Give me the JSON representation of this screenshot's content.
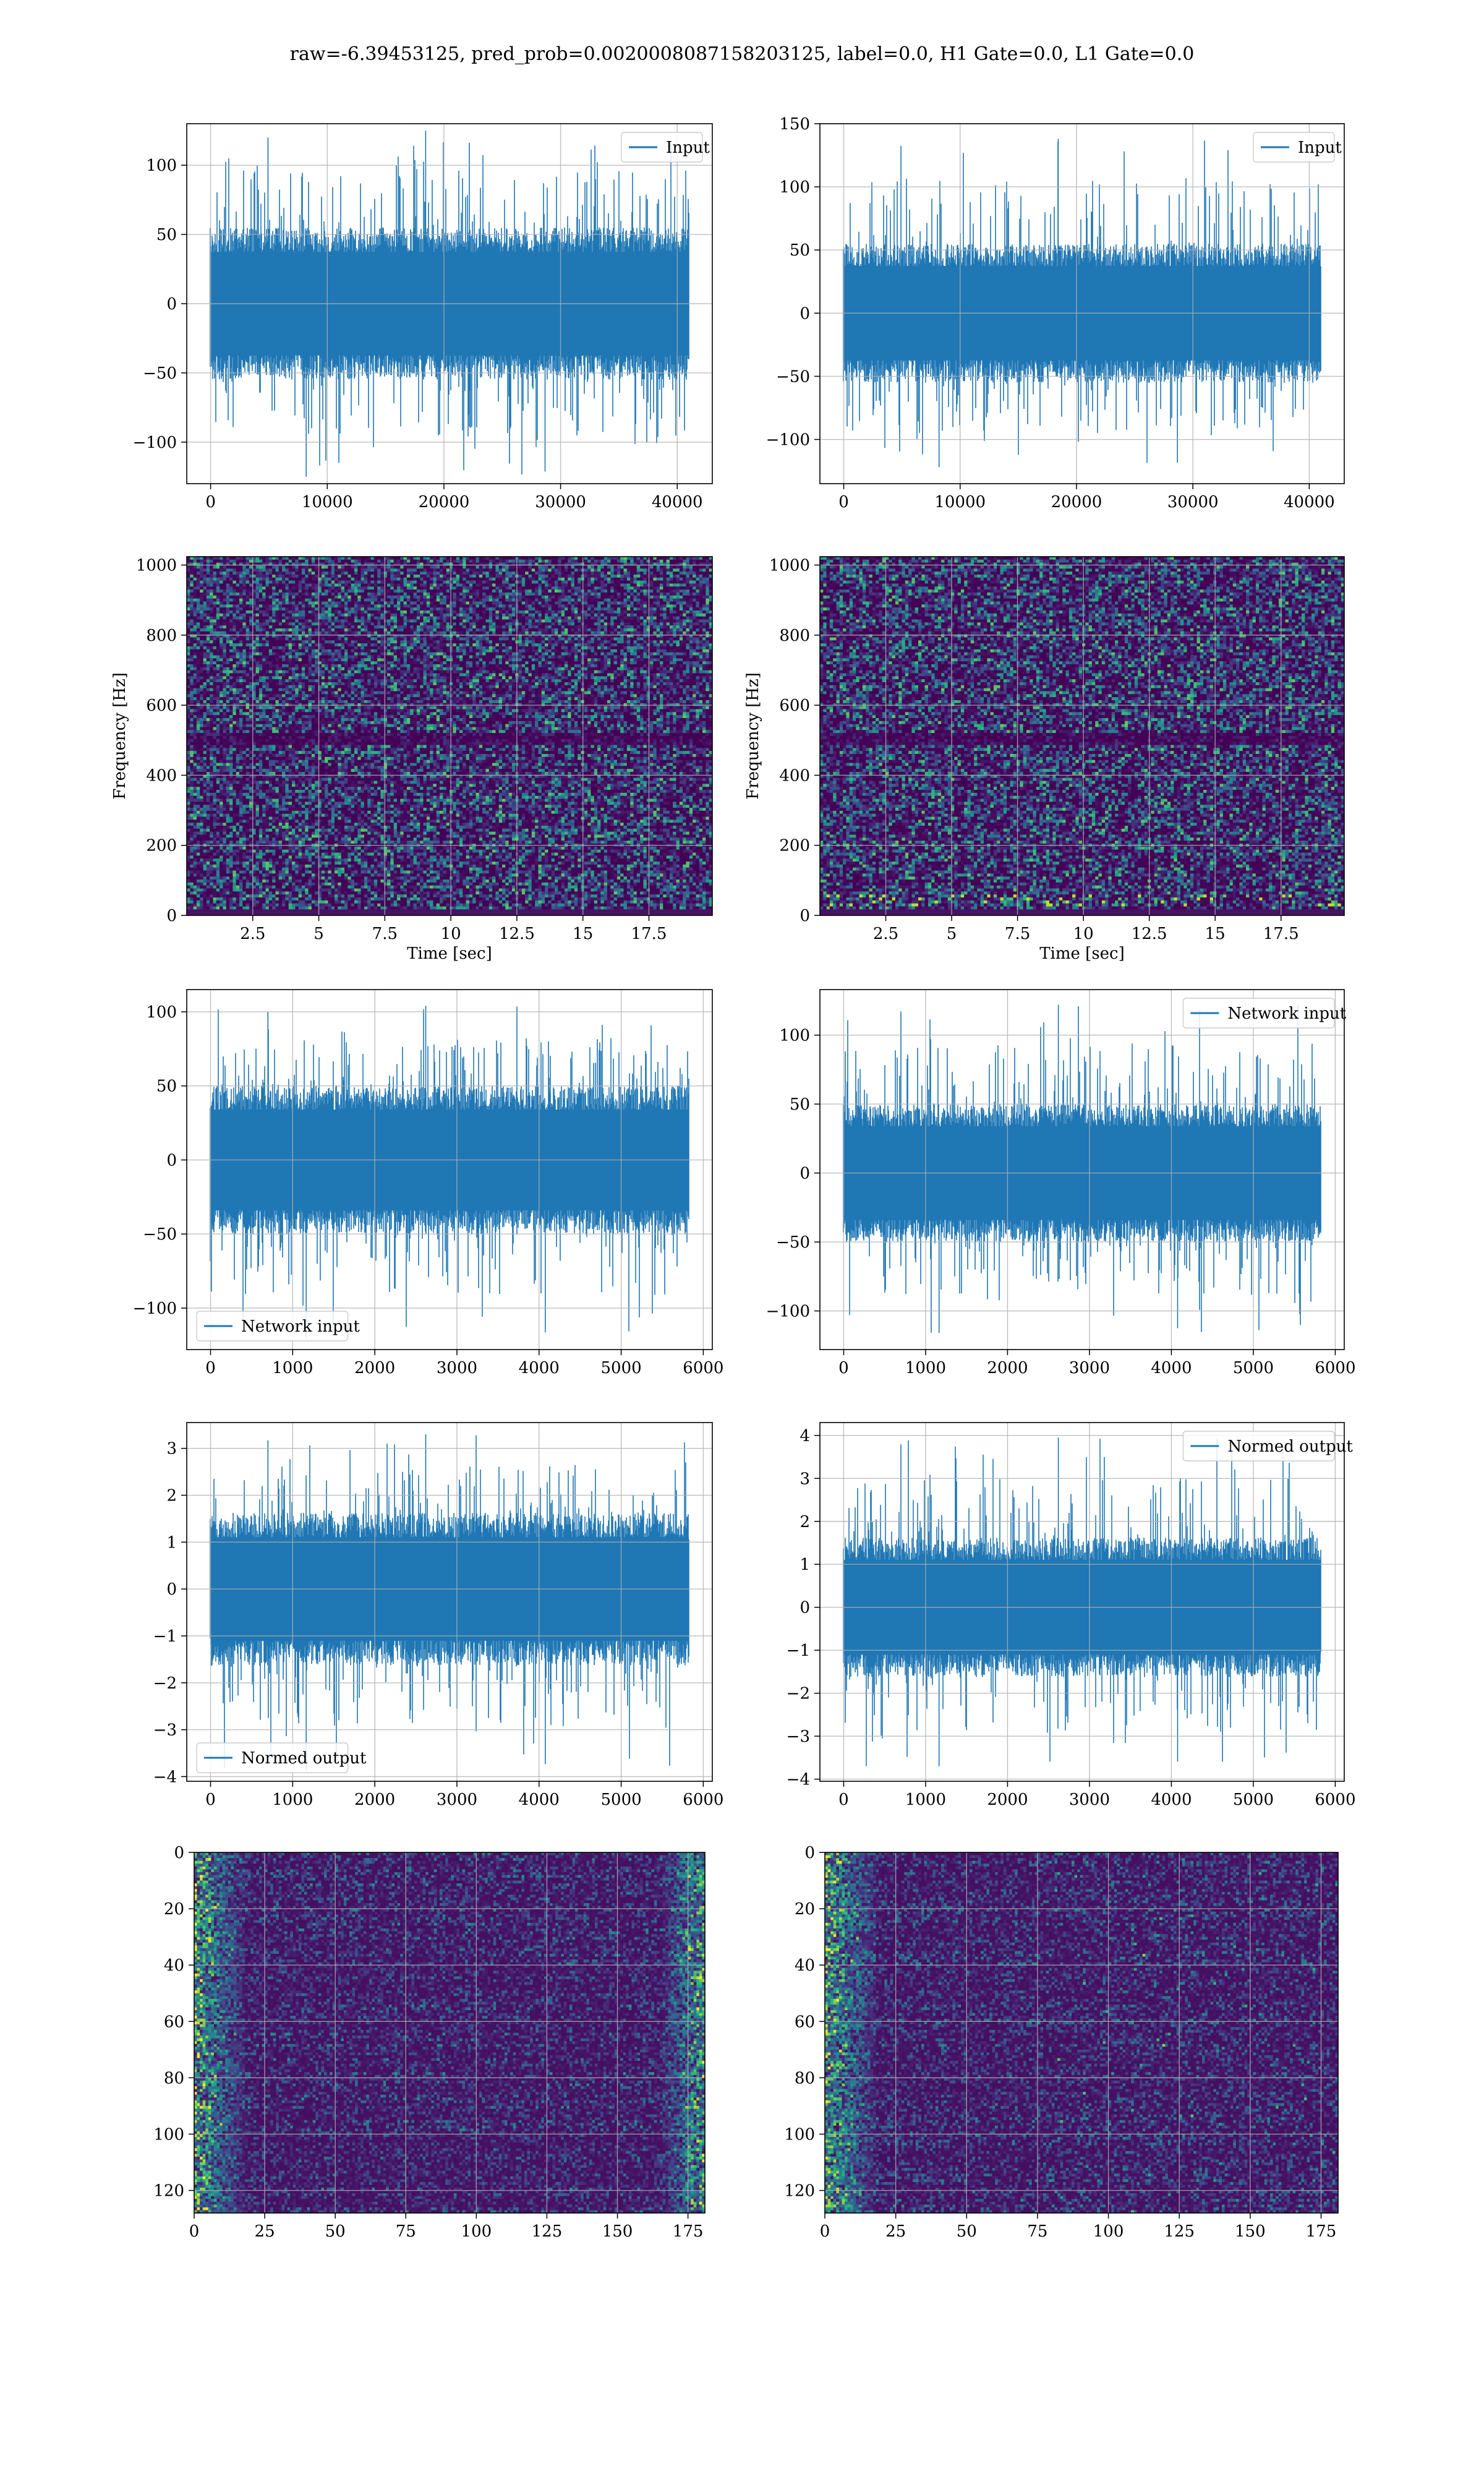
{
  "suptitle": "raw=-6.39453125, pred_prob=0.0020008087158203125, label=0.0, H1 Gate=0.0, L1 Gate=0.0",
  "colors": {
    "series": "#1f77b4",
    "grid": "#b0b0b0",
    "viridis_low": "#440154",
    "viridis_high": "#fde725"
  },
  "chart_data": [
    {
      "id": "input-h1",
      "type": "line",
      "legend": [
        "Input"
      ],
      "legend_loc": "upper right",
      "xlim": [
        -2048,
        43008
      ],
      "ylim": [
        -130,
        130
      ],
      "xticks": [
        0,
        10000,
        20000,
        30000,
        40000
      ],
      "yticks": [
        -100,
        -50,
        0,
        50,
        100
      ],
      "x_range": [
        0,
        40959
      ],
      "noise": {
        "core": 22,
        "spike_max": 125,
        "spike_min": -125
      },
      "grid": true
    },
    {
      "id": "input-l1",
      "type": "line",
      "legend": [
        "Input"
      ],
      "legend_loc": "upper right",
      "xlim": [
        -2048,
        43008
      ],
      "ylim": [
        -135,
        150
      ],
      "xticks": [
        0,
        10000,
        20000,
        30000,
        40000
      ],
      "yticks": [
        -100,
        -50,
        0,
        50,
        100,
        150
      ],
      "x_range": [
        0,
        40959
      ],
      "noise": {
        "core": 22,
        "spike_max": 138,
        "spike_min": -122
      },
      "grid": true
    },
    {
      "id": "spec-h1",
      "type": "heatmap",
      "xlabel": "Time [sec]",
      "ylabel": "Frequency [Hz]",
      "xlim": [
        0,
        19.9
      ],
      "ylim": [
        0,
        1024
      ],
      "xticks": [
        2.5,
        5.0,
        7.5,
        10.0,
        12.5,
        15.0,
        17.5
      ],
      "yticks": [
        0,
        200,
        400,
        600,
        800,
        1000
      ],
      "colormap": "viridis",
      "grid": true
    },
    {
      "id": "spec-l1",
      "type": "heatmap",
      "xlabel": "Time [sec]",
      "ylabel": "Frequency [Hz]",
      "xlim": [
        0,
        19.9
      ],
      "ylim": [
        0,
        1024
      ],
      "xticks": [
        2.5,
        5.0,
        7.5,
        10.0,
        12.5,
        15.0,
        17.5
      ],
      "yticks": [
        0,
        200,
        400,
        600,
        800,
        1000
      ],
      "colormap": "viridis",
      "grid": true
    },
    {
      "id": "net-h1",
      "type": "line",
      "legend": [
        "Network input"
      ],
      "legend_loc": "lower left",
      "xlim": [
        -290,
        6110
      ],
      "ylim": [
        -128,
        115
      ],
      "xticks": [
        0,
        1000,
        2000,
        3000,
        4000,
        5000,
        6000
      ],
      "yticks": [
        -100,
        -50,
        0,
        50,
        100
      ],
      "x_range": [
        0,
        5823
      ],
      "noise": {
        "core": 20,
        "spike_max": 104,
        "spike_min": -120
      },
      "grid": true
    },
    {
      "id": "net-l1",
      "type": "line",
      "legend": [
        "Network input"
      ],
      "legend_loc": "upper right",
      "xlim": [
        -290,
        6110
      ],
      "ylim": [
        -128,
        133
      ],
      "xticks": [
        0,
        1000,
        2000,
        3000,
        4000,
        5000,
        6000
      ],
      "yticks": [
        -100,
        -50,
        0,
        50,
        100
      ],
      "x_range": [
        0,
        5823
      ],
      "noise": {
        "core": 20,
        "spike_max": 122,
        "spike_min": -116
      },
      "grid": true
    },
    {
      "id": "norm-h1",
      "type": "line",
      "legend": [
        "Normed output"
      ],
      "legend_loc": "lower left",
      "xlim": [
        -290,
        6110
      ],
      "ylim": [
        -4.1,
        3.55
      ],
      "xticks": [
        0,
        1000,
        2000,
        3000,
        4000,
        5000,
        6000
      ],
      "yticks": [
        -4,
        -3,
        -2,
        -1,
        0,
        1,
        2,
        3
      ],
      "x_range": [
        0,
        5823
      ],
      "noise": {
        "core": 0.65,
        "spike_max": 3.3,
        "spike_min": -3.85
      },
      "grid": true
    },
    {
      "id": "norm-l1",
      "type": "line",
      "legend": [
        "Normed output"
      ],
      "legend_loc": "upper right",
      "xlim": [
        -290,
        6110
      ],
      "ylim": [
        -4.05,
        4.3
      ],
      "xticks": [
        0,
        1000,
        2000,
        3000,
        4000,
        5000,
        6000
      ],
      "yticks": [
        -4,
        -3,
        -2,
        -1,
        0,
        1,
        2,
        3,
        4
      ],
      "x_range": [
        0,
        5823
      ],
      "noise": {
        "core": 0.65,
        "spike_max": 3.95,
        "spike_min": -3.7
      },
      "grid": true
    },
    {
      "id": "feat-h1",
      "type": "heatmap",
      "xlim": [
        0,
        181
      ],
      "ylim": [
        128,
        0
      ],
      "xticks": [
        0,
        25,
        50,
        75,
        100,
        125,
        150,
        175
      ],
      "yticks": [
        0,
        20,
        40,
        60,
        80,
        100,
        120
      ],
      "colormap": "viridis",
      "grid": true
    },
    {
      "id": "feat-l1",
      "type": "heatmap",
      "xlim": [
        0,
        181
      ],
      "ylim": [
        128,
        0
      ],
      "xticks": [
        0,
        25,
        50,
        75,
        100,
        125,
        150,
        175
      ],
      "yticks": [
        0,
        20,
        40,
        60,
        80,
        100,
        120
      ],
      "colormap": "viridis",
      "grid": true
    }
  ]
}
